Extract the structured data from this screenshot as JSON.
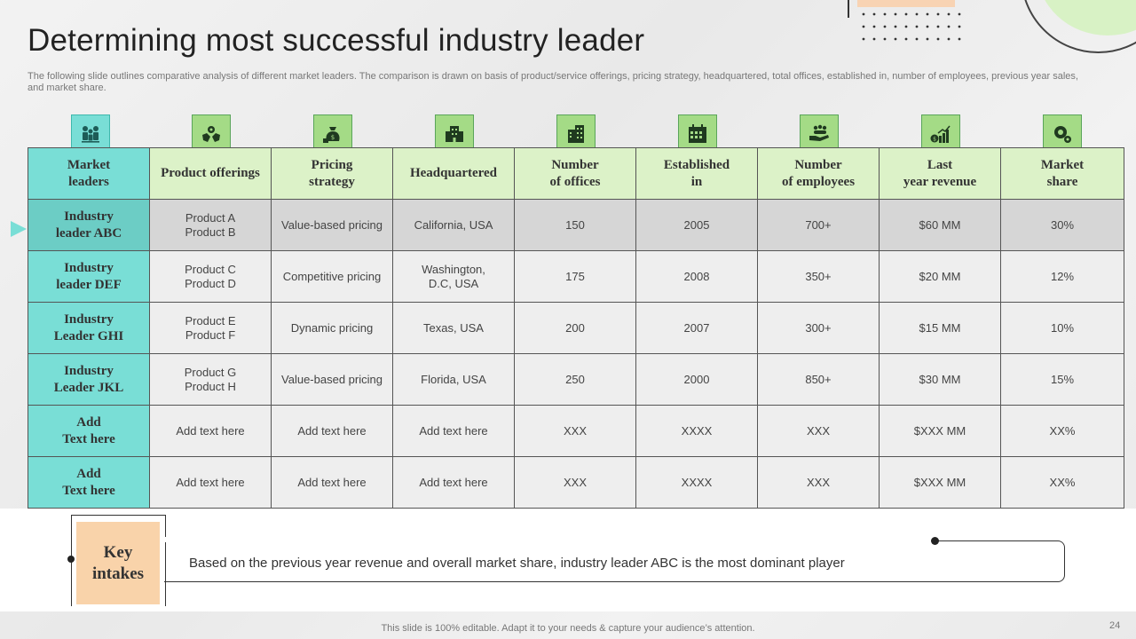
{
  "slide": {
    "title": "Determining most successful industry leader",
    "subtitle": "The following slide outlines comparative analysis of different market leaders. The comparison is drawn on basis of product/service offerings, pricing strategy, headquartered, total offices, established in, number of employees, previous year sales, and market share.",
    "footer": "This slide is 100% editable. Adapt it to your needs & capture your audience’s attention.",
    "page_number": "24"
  },
  "table": {
    "headers": [
      {
        "label": "Market\nleaders",
        "icon": "people-icon"
      },
      {
        "label": "Product offerings",
        "icon": "hand-gear-icon"
      },
      {
        "label": "Pricing\nstrategy",
        "icon": "money-bag-icon"
      },
      {
        "label": "Headquartered",
        "icon": "buildings-icon"
      },
      {
        "label": "Number\nof offices",
        "icon": "office-building-icon"
      },
      {
        "label": "Established\nin",
        "icon": "calendar-icon"
      },
      {
        "label": "Number\nof employees",
        "icon": "team-hand-icon"
      },
      {
        "label": "Last\nyear revenue",
        "icon": "revenue-chart-icon"
      },
      {
        "label": "Market\nshare",
        "icon": "gear-globe-icon"
      }
    ],
    "rows": [
      {
        "leader": "Industry\nleader ABC",
        "products": "Product A\nProduct B",
        "pricing": "Value-based  pricing",
        "hq": "California,  USA",
        "offices": "150",
        "established": "2005",
        "employees": "700+",
        "revenue": "$60  MM",
        "share": "30%"
      },
      {
        "leader": "Industry\nleader DEF",
        "products": "Product C\nProduct D",
        "pricing": "Competitive  pricing",
        "hq": "Washington,\nD.C, USA",
        "offices": "175",
        "established": "2008",
        "employees": "350+",
        "revenue": "$20  MM",
        "share": "12%"
      },
      {
        "leader": "Industry\nLeader GHI",
        "products": "Product E\nProduct F",
        "pricing": "Dynamic pricing",
        "hq": "Texas,  USA",
        "offices": "200",
        "established": "2007",
        "employees": "300+",
        "revenue": "$15  MM",
        "share": "10%"
      },
      {
        "leader": "Industry\nLeader JKL",
        "products": "Product G\nProduct H",
        "pricing": "Value-based  pricing",
        "hq": "Florida,  USA",
        "offices": "250",
        "established": "2000",
        "employees": "850+",
        "revenue": "$30  MM",
        "share": "15%"
      },
      {
        "leader": "Add\nText here",
        "products": "Add text here",
        "pricing": "Add text here",
        "hq": "Add text here",
        "offices": "XXX",
        "established": "XXXX",
        "employees": "XXX",
        "revenue": "$XXX  MM",
        "share": "XX%"
      },
      {
        "leader": "Add\nText here",
        "products": "Add text here",
        "pricing": "Add text here",
        "hq": "Add text here",
        "offices": "XXX",
        "established": "XXXX",
        "employees": "XXX",
        "revenue": "$XXX  MM",
        "share": "XX%"
      }
    ]
  },
  "key_intakes": {
    "label": "Key\nintakes",
    "text": "Based on the previous year revenue  and overall market share, industry leader ABC is the most dominant player"
  },
  "colors": {
    "teal": "#79ded6",
    "light_green": "#dcf2c8",
    "icon_green": "#a4db86",
    "peach": "#f9d3aa"
  }
}
